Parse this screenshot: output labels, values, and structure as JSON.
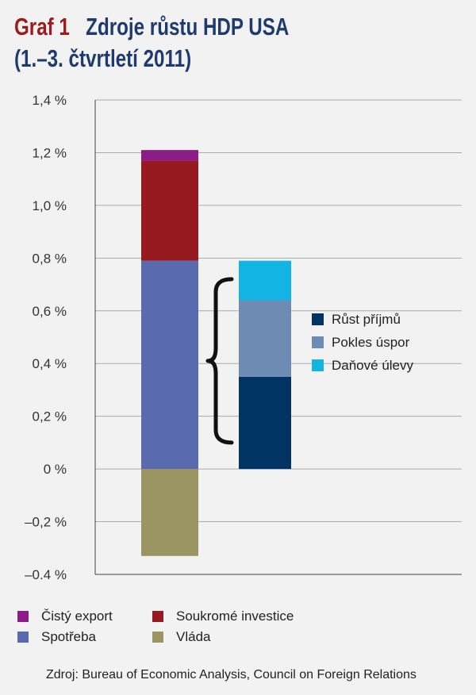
{
  "title": {
    "graf": "Graf 1",
    "main": "Zdroje růstu HDP USA",
    "sub": "(1.–3. čtvrtletí 2011)"
  },
  "chart_data": {
    "type": "bar",
    "stacked": true,
    "ylim": [
      -0.4,
      1.4
    ],
    "yticks": [
      1.4,
      1.2,
      1.0,
      0.8,
      0.6,
      0.4,
      0.2,
      0,
      -0.2,
      -0.4
    ],
    "ytick_labels": [
      "1,4 %",
      "1,2 %",
      "1,0 %",
      "0,8 %",
      "0,6 %",
      "0,4 %",
      "0,2 %",
      "0 %",
      "–0,2 %",
      "–0,4 %"
    ],
    "grid": "horizontal",
    "bars": [
      {
        "segments": [
          {
            "name": "Vláda",
            "from": -0.33,
            "to": 0,
            "color": "#9b9563"
          },
          {
            "name": "Spotřeba",
            "from": 0,
            "to": 0.79,
            "color": "#5a6aae"
          },
          {
            "name": "Soukromé investice",
            "from": 0.79,
            "to": 1.17,
            "color": "#961a1f"
          },
          {
            "name": "Čistý export",
            "from": 1.17,
            "to": 1.21,
            "color": "#8c1c87"
          }
        ]
      },
      {
        "segments": [
          {
            "name": "Růst příjmů",
            "from": 0,
            "to": 0.35,
            "color": "#003463"
          },
          {
            "name": "Pokles úspor",
            "from": 0.35,
            "to": 0.64,
            "color": "#6e8bb3"
          },
          {
            "name": "Daňové úlevy",
            "from": 0.64,
            "to": 0.79,
            "color": "#12b4e4"
          }
        ]
      }
    ]
  },
  "inner_legend": [
    {
      "label": "Růst příjmů",
      "color": "#003463"
    },
    {
      "label": "Pokles úspor",
      "color": "#6e8bb3"
    },
    {
      "label": "Daňové úlevy",
      "color": "#12b4e4"
    }
  ],
  "bottom_legend": {
    "row1": [
      {
        "label": "Čistý export",
        "color": "#8c1c87"
      },
      {
        "label": "Soukromé investice",
        "color": "#961a1f"
      }
    ],
    "row2": [
      {
        "label": "Spotřeba",
        "color": "#5a6aae"
      },
      {
        "label": "Vláda",
        "color": "#9b9563"
      }
    ]
  },
  "source": "Zdroj: Bureau of Economic Analysis, Council on Foreign Relations"
}
